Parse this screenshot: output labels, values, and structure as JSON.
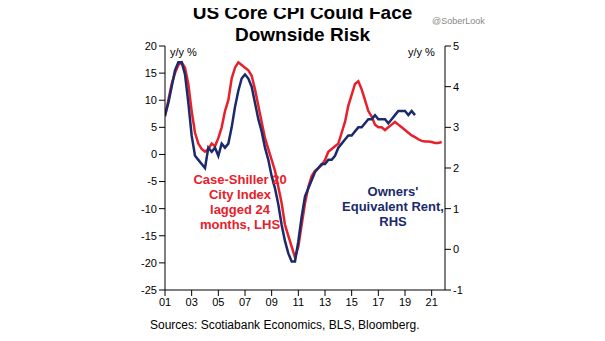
{
  "chart_data": {
    "type": "line",
    "title": "US Core CPI Could Face Downside Risk",
    "y_label": "y/y %",
    "y2_label": "y/y %",
    "caption": "Sources: Scotiabank Economics, BLS, Bloomberg.",
    "annotations": [
      "@SoberLook"
    ],
    "grid": false,
    "x": [
      2001,
      2001.25,
      2001.5,
      2001.75,
      2002,
      2002.25,
      2002.5,
      2002.75,
      2003,
      2003.25,
      2003.5,
      2003.75,
      2004,
      2004.25,
      2004.5,
      2004.75,
      2005,
      2005.25,
      2005.5,
      2005.75,
      2006,
      2006.25,
      2006.5,
      2006.75,
      2007,
      2007.25,
      2007.5,
      2007.75,
      2008,
      2008.25,
      2008.5,
      2008.75,
      2009,
      2009.25,
      2009.5,
      2009.75,
      2010,
      2010.25,
      2010.5,
      2010.75,
      2011,
      2011.25,
      2011.5,
      2011.75,
      2012,
      2012.25,
      2012.5,
      2012.75,
      2013,
      2013.25,
      2013.5,
      2013.75,
      2014,
      2014.25,
      2014.5,
      2014.75,
      2015,
      2015.25,
      2015.5,
      2015.75,
      2016,
      2016.25,
      2016.5,
      2016.75,
      2017,
      2017.25,
      2017.5,
      2017.75,
      2018,
      2018.25,
      2018.5,
      2018.75,
      2019,
      2019.25,
      2019.5,
      2019.75,
      2020,
      2020.25,
      2020.5,
      2020.75,
      2021,
      2021.25,
      2021.5,
      2021.75
    ],
    "xlim": [
      2001,
      2022
    ],
    "xticks": [
      {
        "value": 2001,
        "label": "01"
      },
      {
        "value": 2003,
        "label": "03"
      },
      {
        "value": 2005,
        "label": "05"
      },
      {
        "value": 2007,
        "label": "07"
      },
      {
        "value": 2009,
        "label": "09"
      },
      {
        "value": 2011,
        "label": "11"
      },
      {
        "value": 2013,
        "label": "13"
      },
      {
        "value": 2015,
        "label": "15"
      },
      {
        "value": 2017,
        "label": "17"
      },
      {
        "value": 2019,
        "label": "19"
      },
      {
        "value": 2021,
        "label": "21"
      }
    ],
    "ylim": [
      -25,
      20
    ],
    "yticks": [
      -25,
      -20,
      -15,
      -10,
      -5,
      0,
      5,
      10,
      15,
      20
    ],
    "y2lim": [
      -1,
      5
    ],
    "y2ticks": [
      -1,
      0,
      1,
      2,
      3,
      4,
      5
    ],
    "series": [
      {
        "name": "Case-Shiller 20 City Index lagged 24 months, LHS",
        "color": "#e8202a",
        "values": [
          7,
          10,
          13,
          15,
          16.5,
          17,
          16,
          13,
          8,
          4,
          2,
          1,
          0.5,
          1,
          2,
          1.5,
          3,
          5,
          8,
          10,
          14,
          16,
          17,
          16.5,
          16,
          15.5,
          14.5,
          12,
          9,
          6,
          3,
          1,
          -1,
          -3,
          -6,
          -9,
          -13,
          -15,
          -17,
          -19,
          -17,
          -13,
          -9,
          -6,
          -4,
          -3,
          -2.5,
          -2,
          -1,
          0.5,
          1,
          1.5,
          2,
          4,
          6,
          9,
          11,
          13,
          13.5,
          12,
          10,
          8,
          7,
          5.5,
          5,
          5,
          4.5,
          5,
          5.5,
          6,
          5.5,
          5,
          4.5,
          4,
          3.5,
          3.2,
          2.8,
          2.5,
          2.4,
          2.4,
          2.3,
          2.1,
          2.1,
          2.3
        ]
      },
      {
        "name": "Owners' Equivalent Rent, RHS",
        "color": "#1b2a6b",
        "axis": "y2",
        "values": [
          3.3,
          3.6,
          4.0,
          4.4,
          4.6,
          4.6,
          4.3,
          3.6,
          2.8,
          2.3,
          2.2,
          2.1,
          2.0,
          2.5,
          2.4,
          2.5,
          2.3,
          2.6,
          2.5,
          2.6,
          3.0,
          3.5,
          3.9,
          4.2,
          4.3,
          4.2,
          4.0,
          3.6,
          3.2,
          2.9,
          2.5,
          2.2,
          1.8,
          1.5,
          1.1,
          0.6,
          0.2,
          -0.1,
          -0.3,
          -0.3,
          0.2,
          0.8,
          1.3,
          1.5,
          1.7,
          1.9,
          2.0,
          2.1,
          2.1,
          2.2,
          2.2,
          2.3,
          2.5,
          2.6,
          2.7,
          2.8,
          2.8,
          2.9,
          3.0,
          3.0,
          3.1,
          3.2,
          3.2,
          3.3,
          3.2,
          3.2,
          3.2,
          3.1,
          3.2,
          3.3,
          3.4,
          3.4,
          3.4,
          3.3,
          3.4,
          3.3,
          null,
          null,
          null,
          null,
          null,
          null,
          null,
          null
        ]
      }
    ]
  }
}
